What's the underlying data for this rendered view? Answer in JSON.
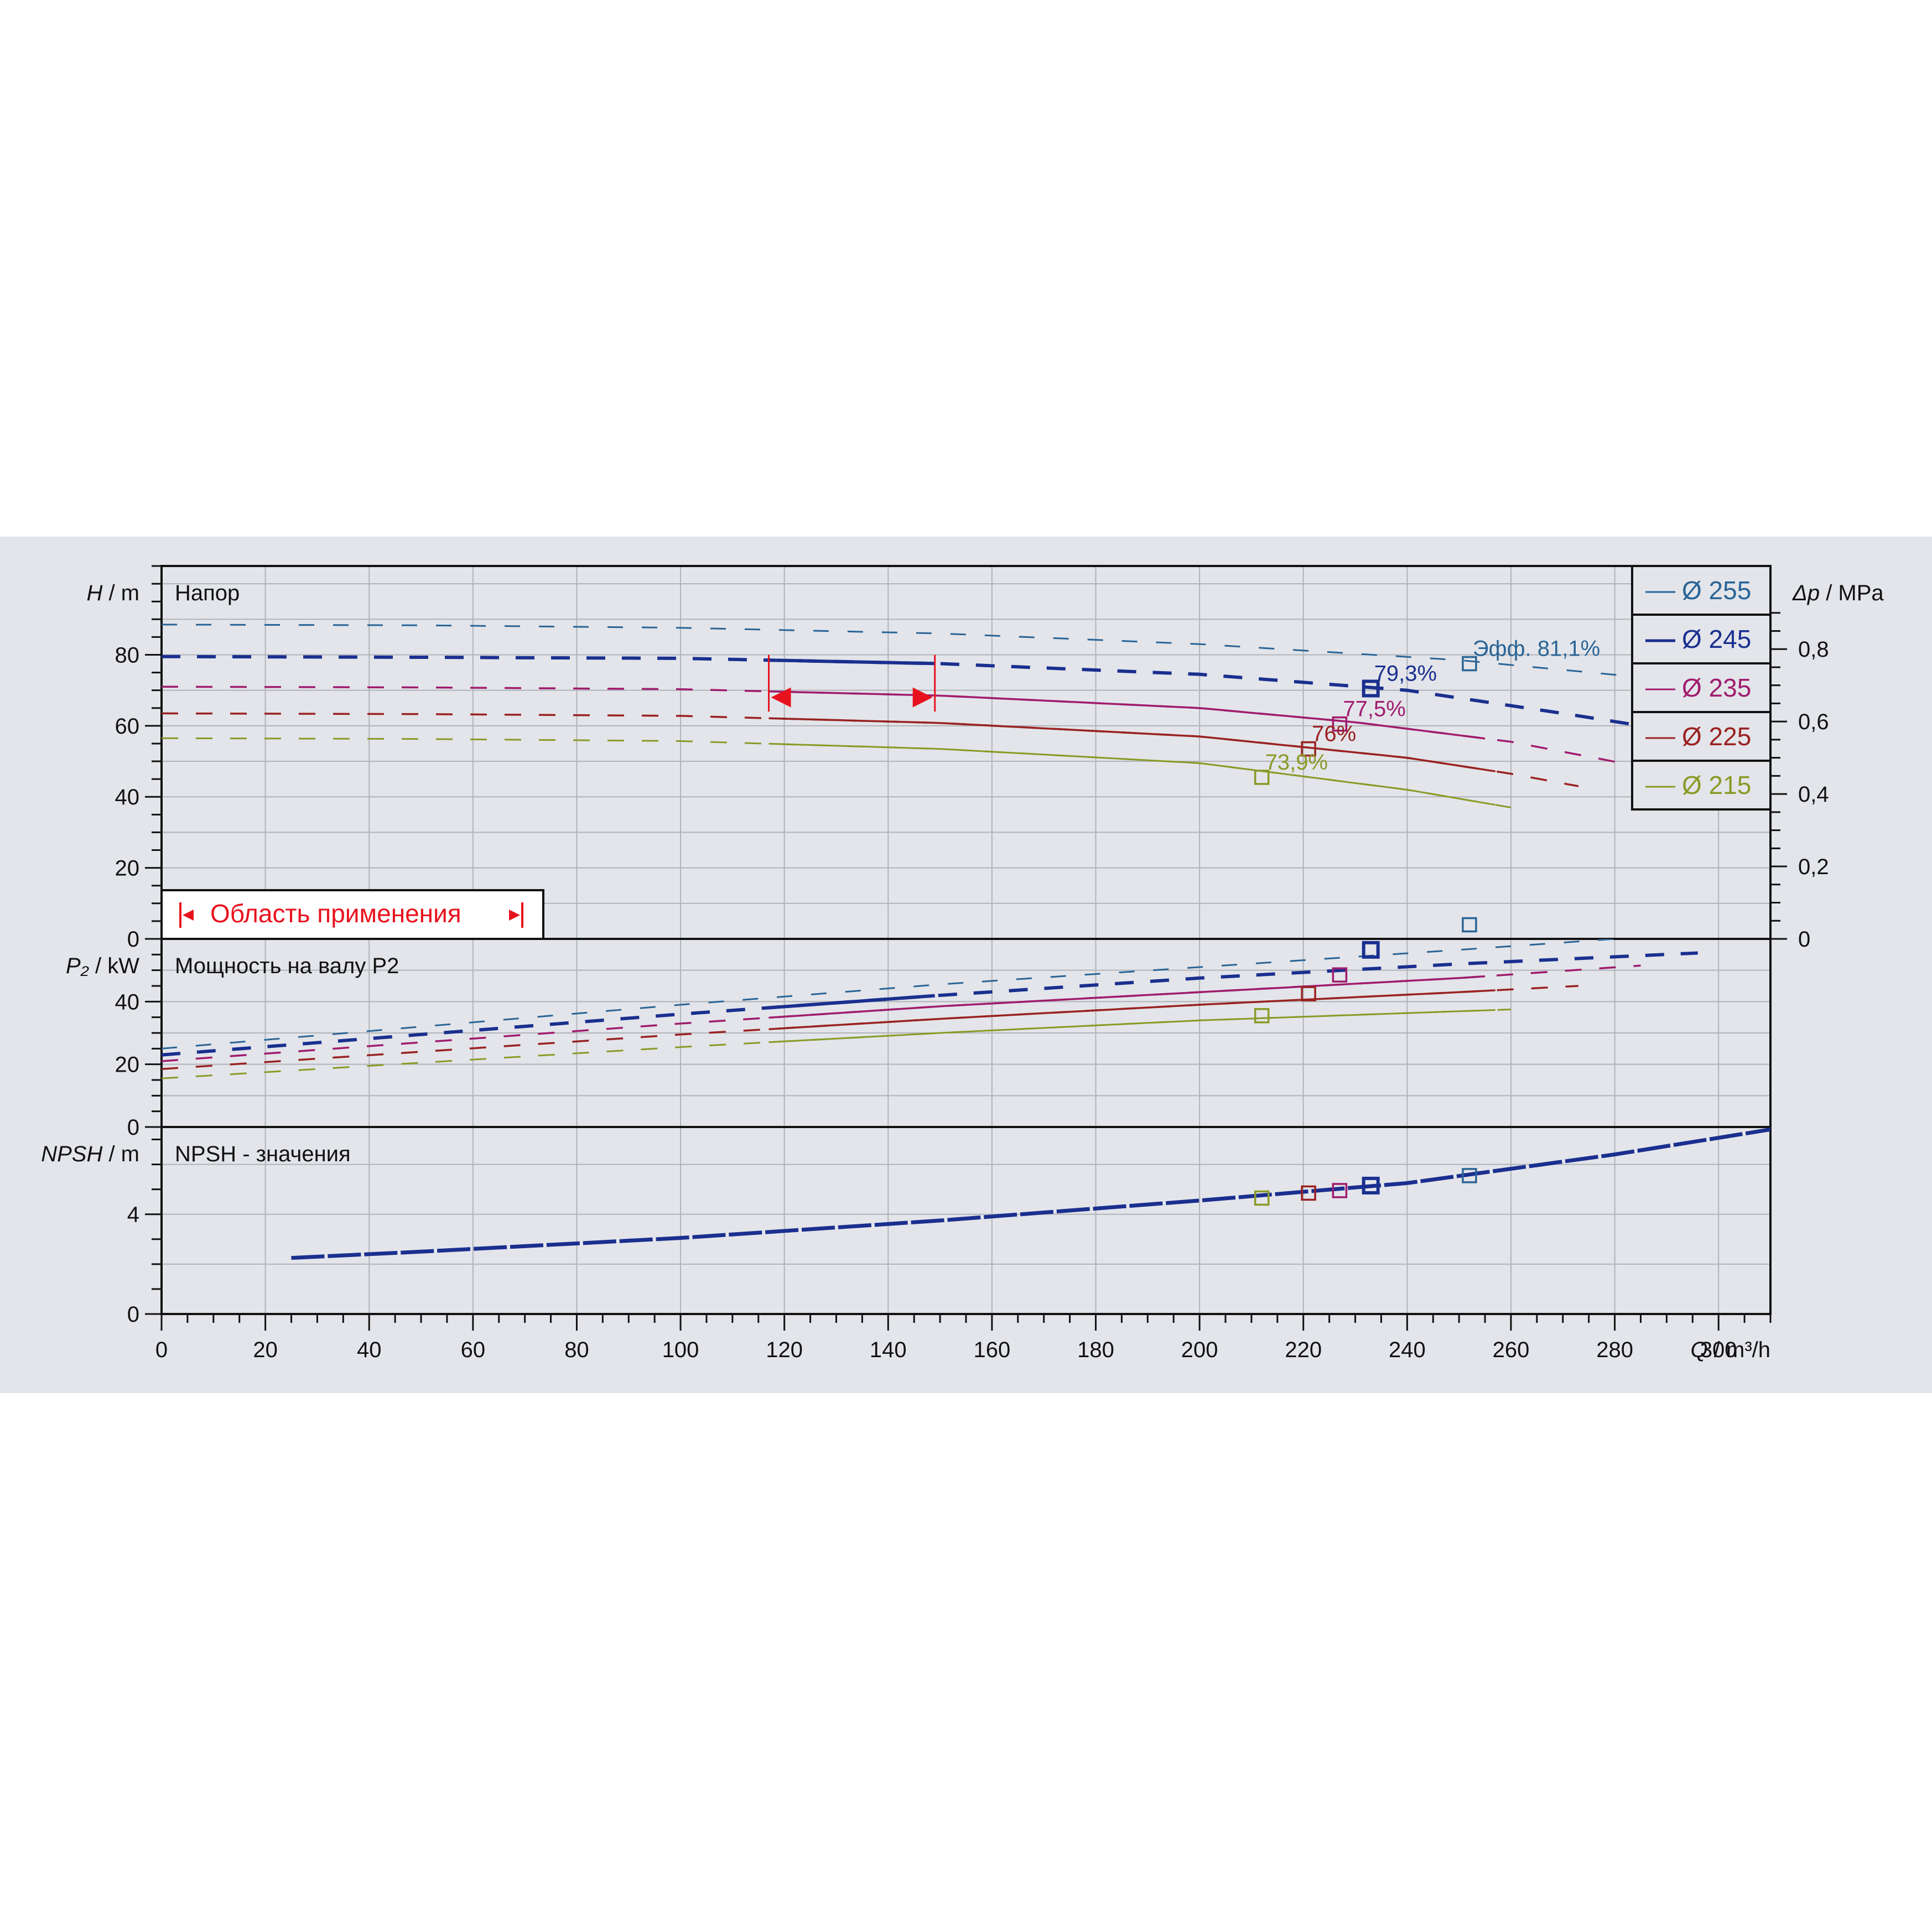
{
  "chart_data": {
    "type": "line",
    "x_axis": {
      "label_var": "Q",
      "label_unit": "/ m³/h",
      "range": [
        0,
        310
      ],
      "ticks": [
        "0",
        "20",
        "40",
        "60",
        "80",
        "100",
        "120",
        "140",
        "160",
        "180",
        "200",
        "220",
        "240",
        "260",
        "280",
        "300"
      ]
    },
    "colors": {
      "d255": "#2a6496",
      "d245": "#1a2f8f",
      "d235": "#a01c6e",
      "d225": "#9a2222",
      "d215": "#8a9a26",
      "grid": "#b0b3b8",
      "range_marker": "#e8121e"
    },
    "panels": [
      {
        "id": "head",
        "title": "Напор",
        "ylabel_var": "H",
        "ylabel_unit": "/ m",
        "ylim": [
          0,
          105
        ],
        "y_ticks": [
          "0",
          "20",
          "40",
          "60",
          "80"
        ],
        "right_axis": {
          "label_var": "Δp",
          "label_unit": "/ MPa",
          "ticks": [
            "0",
            "0,2",
            "0,4",
            "0,6",
            "0,8"
          ]
        },
        "series": [
          {
            "name": "Ø 255",
            "color_key": "d255",
            "x": [
              0,
              50,
              100,
              150,
              200,
              250,
              290,
              310
            ],
            "y": [
              88.5,
              88.3,
              87.6,
              86,
              83,
              78.5,
              73,
              66.5
            ]
          },
          {
            "name": "Ø 245",
            "color_key": "d245",
            "x": [
              0,
              50,
              100,
              150,
              200,
              240,
              270,
              296
            ],
            "y": [
              79.5,
              79.3,
              79,
              77.5,
              74.5,
              70,
              63.5,
              57.5
            ]
          },
          {
            "name": "Ø 235",
            "color_key": "d235",
            "x": [
              0,
              50,
              100,
              150,
              200,
              230,
              260,
              285
            ],
            "y": [
              71,
              70.8,
              70.3,
              68.5,
              65,
              61,
              55.5,
              48.5
            ]
          },
          {
            "name": "Ø 225",
            "color_key": "d225",
            "x": [
              0,
              50,
              100,
              150,
              200,
              240,
              260,
              273
            ],
            "y": [
              63.5,
              63.3,
              62.8,
              60.8,
              57,
              51,
              46.5,
              43
            ]
          },
          {
            "name": "Ø 215",
            "color_key": "d215",
            "x": [
              0,
              50,
              100,
              150,
              200,
              240,
              260
            ],
            "y": [
              56.5,
              56.3,
              55.7,
              53.5,
              49.5,
              42,
              37
            ]
          }
        ],
        "bep_points": [
          {
            "x": 252,
            "y": 77.5,
            "color_key": "d255",
            "label": "Эфф.  81,1%"
          },
          {
            "x": 233,
            "y": 70.5,
            "color_key": "d245",
            "label": "79,3%"
          },
          {
            "x": 227,
            "y": 60.5,
            "color_key": "d235",
            "label": "77,5%"
          },
          {
            "x": 221,
            "y": 53.5,
            "color_key": "d225",
            "label": "76%"
          },
          {
            "x": 212,
            "y": 45.5,
            "color_key": "d215",
            "label": "73,9%"
          }
        ],
        "operating_range": {
          "q_min": 117,
          "q_max": 149,
          "label": "Область применения"
        }
      },
      {
        "id": "power",
        "title": "Мощность на валу P2",
        "ylabel_var": "P₂",
        "ylabel_unit": "/ kW",
        "ylim": [
          0,
          60
        ],
        "y_ticks": [
          "0",
          "20",
          "40"
        ],
        "series": [
          {
            "name": "Ø 255",
            "color_key": "d255",
            "x": [
              0,
              50,
              100,
              150,
              200,
              250,
              310
            ],
            "y": [
              25,
              32,
              39,
              45.5,
              51,
              56.5,
              63.5
            ]
          },
          {
            "name": "Ø 245",
            "color_key": "d245",
            "x": [
              0,
              50,
              100,
              150,
              200,
              250,
              296
            ],
            "y": [
              23,
              29.5,
              36,
              42,
              47.5,
              52,
              55.5
            ]
          },
          {
            "name": "Ø 235",
            "color_key": "d235",
            "x": [
              0,
              50,
              100,
              150,
              200,
              250,
              285
            ],
            "y": [
              21,
              27,
              33,
              38.5,
              43,
              47.5,
              51.5
            ]
          },
          {
            "name": "Ø 225",
            "color_key": "d225",
            "x": [
              0,
              50,
              100,
              150,
              200,
              250,
              273
            ],
            "y": [
              18.5,
              24,
              29.5,
              34.5,
              39,
              43,
              45
            ]
          },
          {
            "name": "Ø 215",
            "color_key": "d215",
            "x": [
              0,
              50,
              100,
              150,
              200,
              260
            ],
            "y": [
              15.5,
              20.5,
              25.5,
              30,
              34,
              37.5
            ]
          }
        ],
        "bep_points": [
          {
            "x": 252,
            "y": 64.5,
            "color_key": "d255"
          },
          {
            "x": 233,
            "y": 56.5,
            "color_key": "d245"
          },
          {
            "x": 227,
            "y": 48.5,
            "color_key": "d235"
          },
          {
            "x": 221,
            "y": 42.5,
            "color_key": "d225"
          },
          {
            "x": 212,
            "y": 35.5,
            "color_key": "d215"
          }
        ]
      },
      {
        "id": "npsh",
        "title": "NPSH - значения",
        "ylabel_var": "NPSH",
        "ylabel_unit": "/ m",
        "ylim": [
          0,
          7.5
        ],
        "y_ticks": [
          "0",
          "4"
        ],
        "series": [
          {
            "name": "NPSH",
            "color_key": "d245",
            "x": [
              25,
              50,
              100,
              150,
              200,
              240,
              280,
              310
            ],
            "y": [
              2.25,
              2.5,
              3.05,
              3.75,
              4.55,
              5.25,
              6.4,
              7.4
            ]
          }
        ],
        "bep_points": [
          {
            "x": 252,
            "y": 5.55,
            "color_key": "d255"
          },
          {
            "x": 233,
            "y": 5.15,
            "color_key": "d245"
          },
          {
            "x": 227,
            "y": 4.95,
            "color_key": "d235"
          },
          {
            "x": 221,
            "y": 4.85,
            "color_key": "d225"
          },
          {
            "x": 212,
            "y": 4.65,
            "color_key": "d215"
          }
        ]
      }
    ]
  }
}
